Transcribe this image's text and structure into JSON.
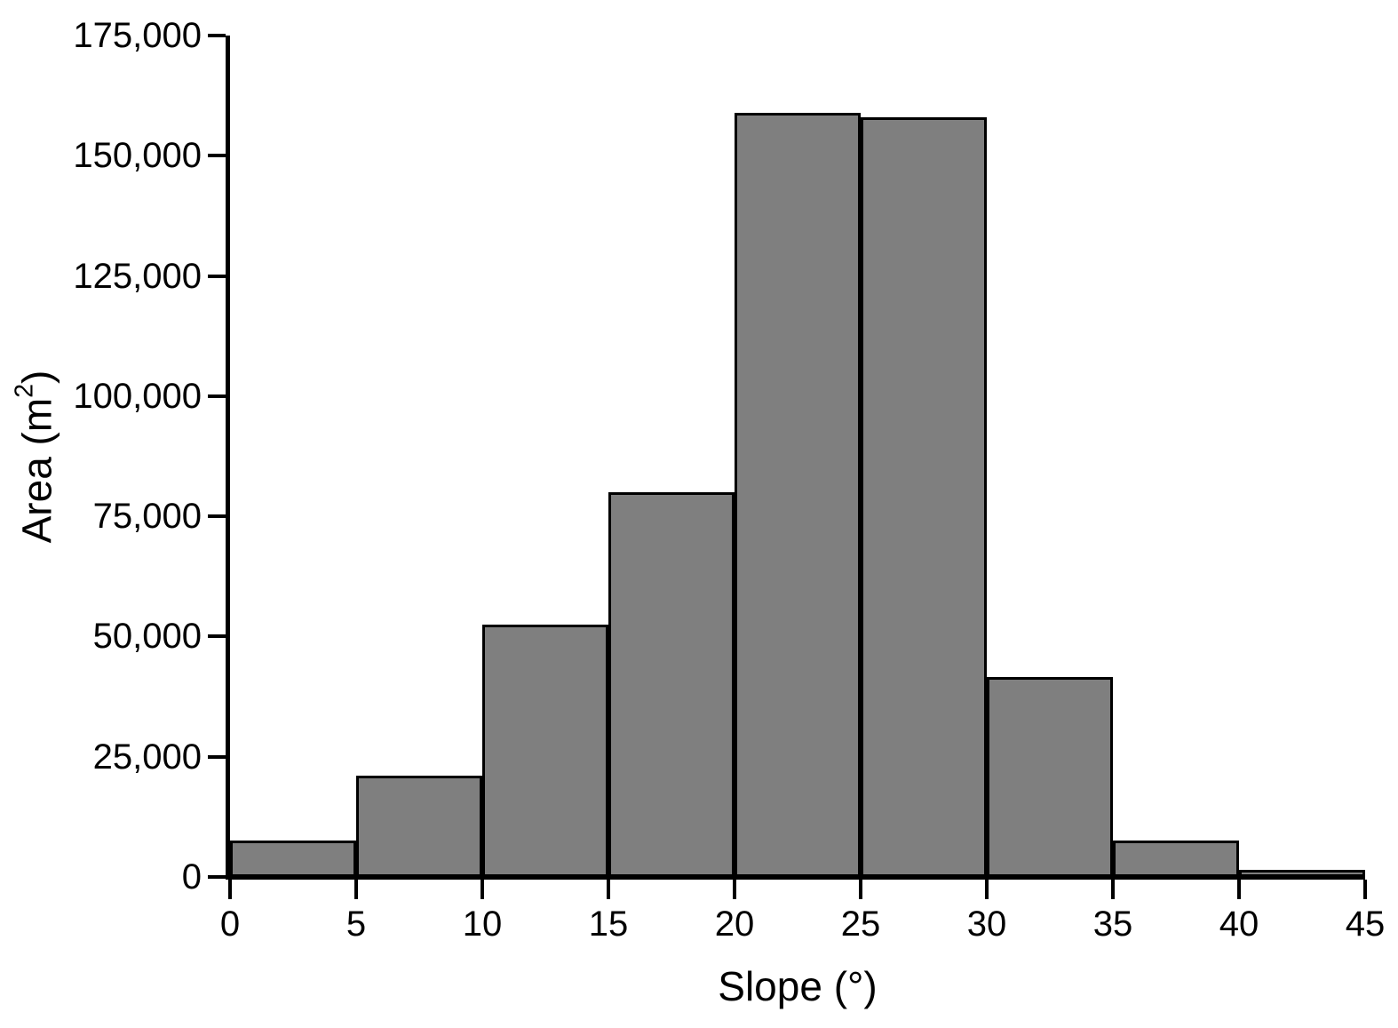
{
  "chart_data": {
    "type": "bar",
    "subtype": "histogram",
    "title": "",
    "xlabel": "Slope (°)",
    "ylabel": "Area (m²)",
    "ylabel_parts": {
      "prefix": "Area (m",
      "superscript": "2",
      "suffix": ")"
    },
    "bin_width": 5,
    "bin_edges": [
      0,
      5,
      10,
      15,
      20,
      25,
      30,
      35,
      40,
      45
    ],
    "categories": [
      "0-5",
      "5-10",
      "10-15",
      "15-20",
      "20-25",
      "25-30",
      "30-35",
      "35-40",
      "40-45"
    ],
    "values": [
      7500,
      21000,
      52500,
      80000,
      159000,
      158000,
      41500,
      7500,
      1500
    ],
    "xlim": [
      0,
      45
    ],
    "ylim": [
      0,
      175000
    ],
    "xticks": {
      "values": [
        0,
        5,
        10,
        15,
        20,
        25,
        30,
        35,
        40,
        45
      ],
      "labels": [
        "0",
        "5",
        "10",
        "15",
        "20",
        "25",
        "30",
        "35",
        "40",
        "45"
      ]
    },
    "yticks": {
      "values": [
        0,
        25000,
        50000,
        75000,
        100000,
        125000,
        150000,
        175000
      ],
      "labels": [
        "0",
        "25,000",
        "50,000",
        "75,000",
        "100,000",
        "125,000",
        "150,000",
        "175,000"
      ]
    },
    "grid": false,
    "legend": null,
    "bar_gap": 0,
    "colors": {
      "bar_fill": "#7f7f7f",
      "bar_border": "#000000",
      "axis": "#000000",
      "text": "#000000",
      "background": "#ffffff"
    }
  }
}
